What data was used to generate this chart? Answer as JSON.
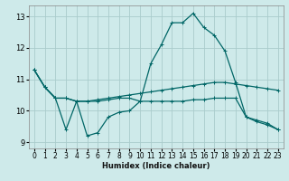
{
  "xlabel": "Humidex (Indice chaleur)",
  "ylabel": "",
  "xlim": [
    -0.5,
    23.5
  ],
  "ylim": [
    8.8,
    13.35
  ],
  "yticks": [
    9,
    10,
    11,
    12,
    13
  ],
  "xticks": [
    0,
    1,
    2,
    3,
    4,
    5,
    6,
    7,
    8,
    9,
    10,
    11,
    12,
    13,
    14,
    15,
    16,
    17,
    18,
    19,
    20,
    21,
    22,
    23
  ],
  "bg_color": "#ceeaea",
  "grid_color": "#aacccc",
  "line_color": "#006666",
  "series": [
    {
      "x": [
        0,
        1,
        2,
        3,
        4,
        5,
        6,
        7,
        8,
        9,
        10,
        11,
        12,
        13,
        14,
        15,
        16,
        17,
        18,
        19,
        20,
        21,
        22,
        23
      ],
      "y": [
        11.3,
        10.75,
        10.4,
        9.4,
        10.3,
        9.2,
        9.3,
        9.8,
        9.95,
        10.0,
        10.3,
        11.5,
        12.1,
        12.8,
        12.8,
        13.1,
        12.65,
        12.4,
        11.9,
        10.9,
        9.8,
        9.7,
        9.6,
        9.4
      ]
    },
    {
      "x": [
        0,
        1,
        2,
        3,
        4,
        5,
        6,
        7,
        8,
        9,
        10,
        11,
        12,
        13,
        14,
        15,
        16,
        17,
        18,
        19,
        20,
        21,
        22,
        23
      ],
      "y": [
        11.3,
        10.75,
        10.4,
        10.4,
        10.3,
        10.3,
        10.35,
        10.4,
        10.45,
        10.5,
        10.55,
        10.6,
        10.65,
        10.7,
        10.75,
        10.8,
        10.85,
        10.9,
        10.9,
        10.85,
        10.8,
        10.75,
        10.7,
        10.65
      ]
    },
    {
      "x": [
        0,
        1,
        2,
        3,
        4,
        5,
        6,
        7,
        8,
        9,
        10,
        11,
        12,
        13,
        14,
        15,
        16,
        17,
        18,
        19,
        20,
        21,
        22,
        23
      ],
      "y": [
        11.3,
        10.75,
        10.4,
        10.4,
        10.3,
        10.3,
        10.3,
        10.35,
        10.4,
        10.4,
        10.3,
        10.3,
        10.3,
        10.3,
        10.3,
        10.35,
        10.35,
        10.4,
        10.4,
        10.4,
        9.8,
        9.65,
        9.55,
        9.4
      ]
    }
  ]
}
